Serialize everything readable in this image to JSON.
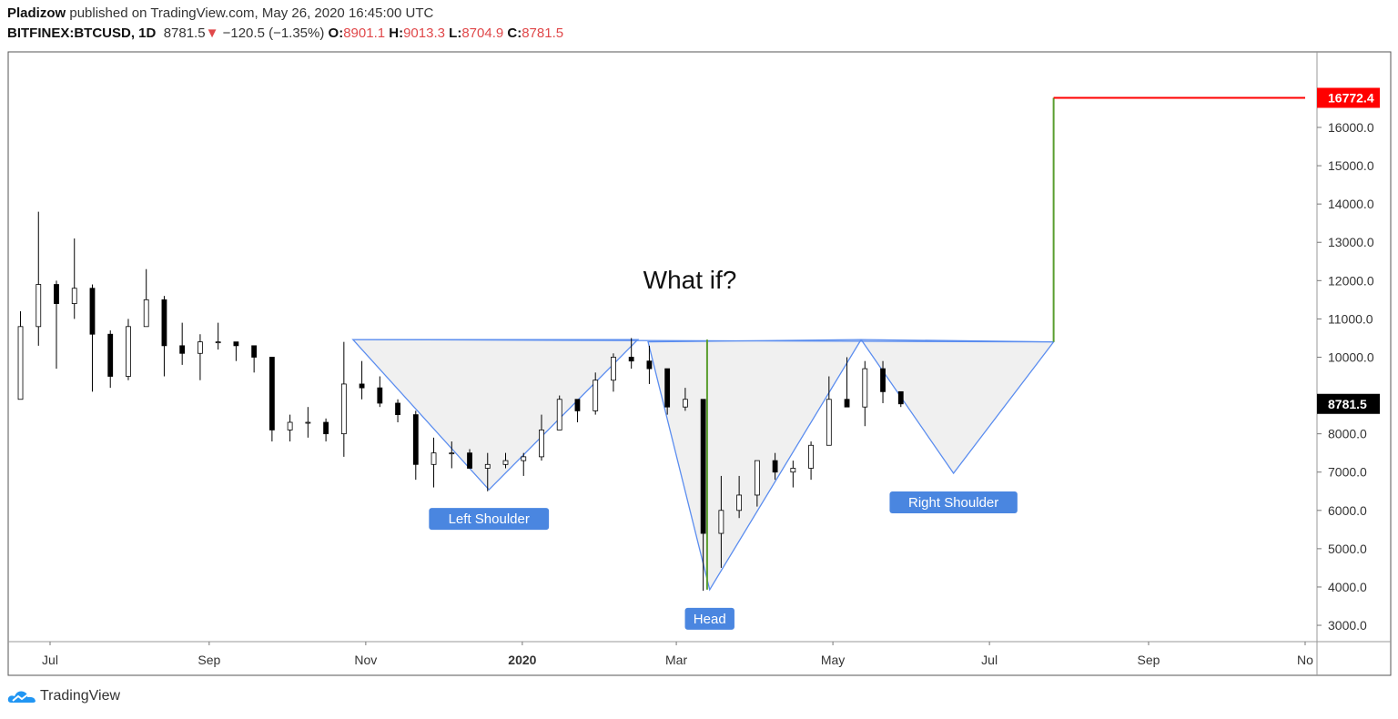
{
  "header": {
    "author": "Pladizow",
    "published": "published on TradingView.com, May 26, 2020 16:45:00 UTC",
    "symbol": "BITFINEX:BTCUSD, 1D",
    "last": "8781.5",
    "change": "−120.5 (−1.35%)",
    "o_label": "O:",
    "o": "8901.1",
    "h_label": "H:",
    "h": "9013.3",
    "l_label": "L:",
    "l": "8704.9",
    "c_label": "C:",
    "c": "8781.5"
  },
  "footer": {
    "brand": "TradingView"
  },
  "colors": {
    "up": "#ffffff",
    "down": "#000000",
    "pattern_line": "#5b8def",
    "pattern_fill": "#f0f0f0",
    "target_line": "#ff0000",
    "measure_line": "#5a9e2f",
    "label_bg": "#4a86e0"
  },
  "chart_data": {
    "type": "candlestick",
    "title": "What if?",
    "x_ticks": [
      {
        "date": "2019-07-01",
        "label": "Jul"
      },
      {
        "date": "2019-09-01",
        "label": "Sep"
      },
      {
        "date": "2019-11-01",
        "label": "Nov"
      },
      {
        "date": "2020-01-01",
        "label": "2020",
        "bold": true
      },
      {
        "date": "2020-03-01",
        "label": "Mar"
      },
      {
        "date": "2020-05-01",
        "label": "May"
      },
      {
        "date": "2020-07-01",
        "label": "Jul"
      },
      {
        "date": "2020-09-01",
        "label": "Sep"
      },
      {
        "date": "2020-11-01",
        "label": "No"
      }
    ],
    "y_ticks": [
      "3000.0",
      "4000.0",
      "5000.0",
      "6000.0",
      "7000.0",
      "8000.0",
      "10000.0",
      "11000.0",
      "12000.0",
      "13000.0",
      "14000.0",
      "15000.0",
      "16000.0"
    ],
    "ylim": [
      2600,
      17400
    ],
    "last_price": {
      "value": 8781.5,
      "label": "8781.5"
    },
    "target_price": {
      "value": 16772.4,
      "label": "16772.4"
    },
    "ohlc": [
      [
        "2019-06-17",
        8900,
        11200,
        8900,
        10800
      ],
      [
        "2019-06-24",
        10800,
        13800,
        10300,
        11900
      ],
      [
        "2019-07-01",
        11900,
        12000,
        9700,
        11400
      ],
      [
        "2019-07-08",
        11400,
        13100,
        11000,
        11800
      ],
      [
        "2019-07-15",
        11800,
        11900,
        9100,
        10600
      ],
      [
        "2019-07-22",
        10600,
        10700,
        9200,
        9500
      ],
      [
        "2019-07-29",
        9500,
        11000,
        9400,
        10800
      ],
      [
        "2019-08-05",
        10800,
        12300,
        10800,
        11500
      ],
      [
        "2019-08-12",
        11500,
        11600,
        9500,
        10300
      ],
      [
        "2019-08-19",
        10300,
        10900,
        9800,
        10100
      ],
      [
        "2019-08-26",
        10100,
        10600,
        9400,
        10400
      ],
      [
        "2019-09-02",
        10400,
        10900,
        10200,
        10400
      ],
      [
        "2019-09-09",
        10400,
        10400,
        9900,
        10300
      ],
      [
        "2019-09-16",
        10300,
        10300,
        9600,
        10000
      ],
      [
        "2019-09-23",
        10000,
        10000,
        7800,
        8100
      ],
      [
        "2019-09-30",
        8100,
        8500,
        7800,
        8300
      ],
      [
        "2019-10-07",
        8300,
        8700,
        7900,
        8300
      ],
      [
        "2019-10-14",
        8300,
        8400,
        7800,
        8000
      ],
      [
        "2019-10-21",
        8000,
        10400,
        7400,
        9300
      ],
      [
        "2019-10-28",
        9300,
        9900,
        8900,
        9200
      ],
      [
        "2019-11-04",
        9200,
        9500,
        8700,
        8800
      ],
      [
        "2019-11-11",
        8800,
        8900,
        8300,
        8500
      ],
      [
        "2019-11-18",
        8500,
        8600,
        6800,
        7200
      ],
      [
        "2019-11-25",
        7200,
        7900,
        6600,
        7500
      ],
      [
        "2019-12-02",
        7500,
        7800,
        7100,
        7500
      ],
      [
        "2019-12-09",
        7500,
        7600,
        7100,
        7100
      ],
      [
        "2019-12-16",
        7100,
        7500,
        6500,
        7200
      ],
      [
        "2019-12-23",
        7200,
        7500,
        7100,
        7300
      ],
      [
        "2019-12-30",
        7300,
        7500,
        6900,
        7400
      ],
      [
        "2020-01-06",
        7400,
        8500,
        7300,
        8100
      ],
      [
        "2020-01-13",
        8100,
        9000,
        8100,
        8900
      ],
      [
        "2020-01-20",
        8900,
        8900,
        8300,
        8600
      ],
      [
        "2020-01-27",
        8600,
        9600,
        8500,
        9400
      ],
      [
        "2020-02-03",
        9400,
        10100,
        9100,
        10000
      ],
      [
        "2020-02-10",
        10000,
        10500,
        9700,
        9900
      ],
      [
        "2020-02-17",
        9900,
        10300,
        9300,
        9700
      ],
      [
        "2020-02-24",
        9700,
        9700,
        8500,
        8700
      ],
      [
        "2020-03-02",
        8700,
        9200,
        8600,
        8900
      ],
      [
        "2020-03-09",
        8900,
        8900,
        3900,
        5400
      ],
      [
        "2020-03-16",
        5400,
        6900,
        4500,
        6000
      ],
      [
        "2020-03-23",
        6000,
        6900,
        5800,
        6400
      ],
      [
        "2020-03-30",
        6400,
        7300,
        6100,
        7300
      ],
      [
        "2020-04-06",
        7300,
        7500,
        6800,
        7000
      ],
      [
        "2020-04-13",
        7000,
        7300,
        6600,
        7100
      ],
      [
        "2020-04-20",
        7100,
        7800,
        6800,
        7700
      ],
      [
        "2020-04-27",
        7700,
        9500,
        7700,
        8900
      ],
      [
        "2020-05-04",
        8900,
        10000,
        8700,
        8700
      ],
      [
        "2020-05-11",
        8700,
        9900,
        8200,
        9700
      ],
      [
        "2020-05-18",
        9700,
        9900,
        8800,
        9100
      ],
      [
        "2020-05-25",
        9100,
        9100,
        8700,
        8781.5
      ]
    ],
    "pattern": {
      "neckline": [
        [
          "2019-10-27",
          10460
        ],
        [
          "2020-07-26",
          10400
        ]
      ],
      "left_shoulder": [
        [
          "2019-10-27",
          10460
        ],
        [
          "2019-12-19",
          6540
        ],
        [
          "2020-02-15",
          10460
        ]
      ],
      "head": [
        [
          "2020-02-19",
          10400
        ],
        [
          "2020-03-14",
          3930
        ],
        [
          "2020-05-12",
          10460
        ]
      ],
      "right_shoulder": [
        [
          "2020-05-12",
          10460
        ],
        [
          "2020-06-17",
          6970
        ],
        [
          "2020-07-26",
          10400
        ]
      ],
      "measure_head": [
        [
          "2020-03-13",
          10460
        ],
        [
          "2020-03-13",
          3930
        ]
      ],
      "measure_target": [
        [
          "2020-07-26",
          10400
        ],
        [
          "2020-07-26",
          16772.4
        ]
      ],
      "target_line": [
        [
          "2020-07-26",
          16772.4
        ],
        [
          "2020-11-01",
          16772.4
        ]
      ]
    },
    "annotations": [
      {
        "text": "Left Shoulder",
        "date": "2019-12-19",
        "price": 6540,
        "below": true
      },
      {
        "text": "Head",
        "date": "2020-03-14",
        "price": 3930,
        "below": true
      },
      {
        "text": "Right Shoulder",
        "date": "2020-06-17",
        "price": 6970,
        "below": true
      }
    ]
  }
}
